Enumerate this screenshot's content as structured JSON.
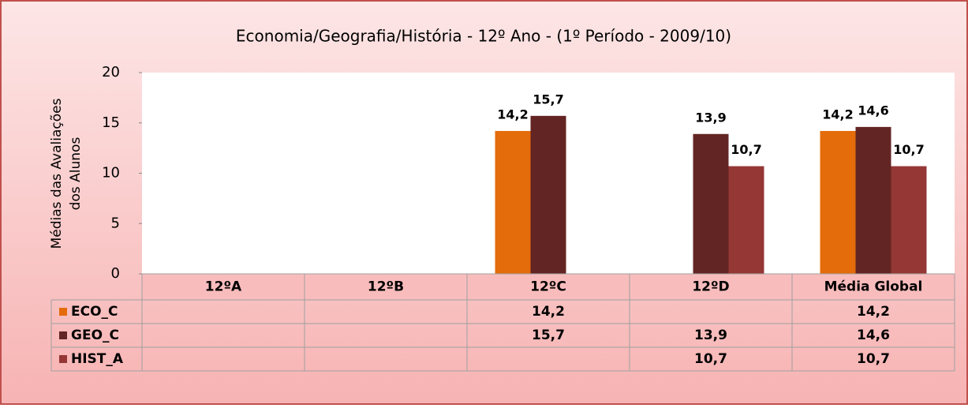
{
  "chart_data": {
    "type": "bar",
    "title": "Economia/Geografia/História - 12º Ano - (1º Período - 2009/10)",
    "y_label": [
      "Médias das Avaliações",
      "dos Alunos"
    ],
    "categories": [
      "12ºA",
      "12ºB",
      "12ºC",
      "12ºD",
      "Média Global"
    ],
    "series": [
      {
        "name": "ECO_C",
        "color": "#e46c0a",
        "values": [
          null,
          null,
          14.2,
          null,
          14.2
        ],
        "value_labels": [
          null,
          null,
          "14,2",
          null,
          "14,2"
        ]
      },
      {
        "name": "GEO_C",
        "color": "#632523",
        "values": [
          null,
          null,
          15.7,
          13.9,
          14.6
        ],
        "value_labels": [
          null,
          null,
          "15,7",
          "13,9",
          "14,6"
        ]
      },
      {
        "name": "HIST_A",
        "color": "#953735",
        "values": [
          null,
          null,
          null,
          10.7,
          10.7
        ],
        "value_labels": [
          null,
          null,
          null,
          "10,7",
          "10,7"
        ]
      }
    ],
    "ylim": [
      0,
      20
    ],
    "yticks": [
      0,
      5,
      10,
      15,
      20
    ],
    "data_table": true
  }
}
